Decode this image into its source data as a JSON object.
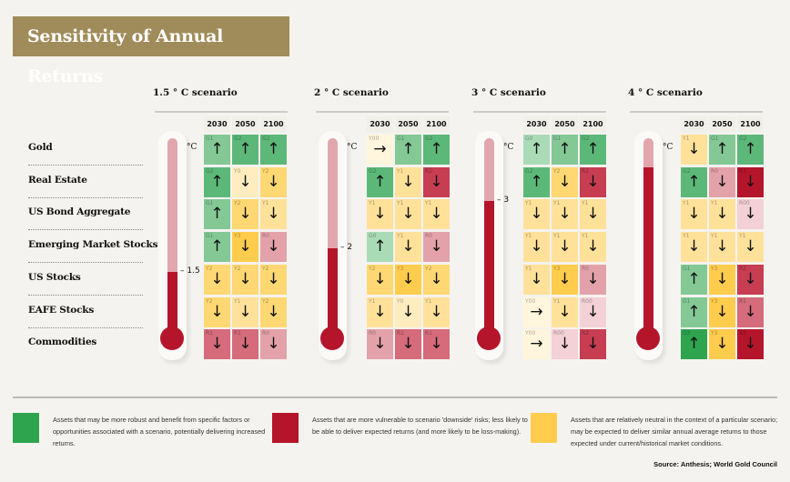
{
  "title": "Sensitivity of Annual Returns",
  "chart_data": {
    "type": "table",
    "title": "Sensitivity of Annual Returns",
    "assets": [
      "Gold",
      "Real Estate",
      "US Bond Aggregate",
      "Emerging Market Stocks",
      "US Stocks",
      "EAFE Stocks",
      "Commodities"
    ],
    "years": [
      "2030",
      "2050",
      "2100"
    ],
    "unit_label": "°C",
    "scenarios": [
      {
        "title": "1.5 ° C scenario",
        "temp_label": "1.5",
        "fill": 0.32,
        "cells": [
          [
            "G1 ↑",
            "G2 ↑",
            "G2 ↑"
          ],
          [
            "G2 ↑",
            "Y0 ↓",
            "Y2 ↓"
          ],
          [
            "G1 ↑",
            "Y2 ↓",
            "Y1 ↓"
          ],
          [
            "G1 ↑",
            "Y3 ↓",
            "R0 ↓"
          ],
          [
            "Y2 ↓",
            "Y2 ↓",
            "Y2 ↓"
          ],
          [
            "Y2 ↓",
            "Y1 ↓",
            "Y2 ↓"
          ],
          [
            "R1 ↓",
            "R1 ↓",
            "R0 ↓"
          ]
        ]
      },
      {
        "title": "2 ° C scenario",
        "temp_label": "2",
        "fill": 0.44,
        "cells": [
          [
            "Y00 →",
            "G1 ↑",
            "G2 ↑"
          ],
          [
            "G2 ↑",
            "Y1 ↓",
            "R2 ↓"
          ],
          [
            "Y1 ↓",
            "Y1 ↓",
            "Y1 ↓"
          ],
          [
            "G0 ↑",
            "Y1 ↓",
            "R0 ↓"
          ],
          [
            "Y2 ↓",
            "Y3 ↓",
            "Y2 ↓"
          ],
          [
            "Y1 ↓",
            "Y0 ↓",
            "Y1 ↓"
          ],
          [
            "R0 ↓",
            "R1 ↓",
            "R1 ↓"
          ]
        ]
      },
      {
        "title": "3 ° C scenario",
        "temp_label": "3",
        "fill": 0.68,
        "cells": [
          [
            "G0 ↑",
            "G1 ↑",
            "G2 ↑"
          ],
          [
            "G2 ↑",
            "Y2 ↓",
            "R2 ↓"
          ],
          [
            "Y1 ↓",
            "Y1 ↓",
            "Y1 ↓"
          ],
          [
            "Y1 ↓",
            "Y1 ↓",
            "Y1 ↓"
          ],
          [
            "Y1 ↓",
            "Y3 ↓",
            "R0 ↓"
          ],
          [
            "Y00 →",
            "Y1 ↓",
            "R00 ↓"
          ],
          [
            "Y00 →",
            "R00 ↓",
            "R2 ↓"
          ]
        ]
      },
      {
        "title": "4 ° C scenario",
        "temp_label": "",
        "fill": 0.85,
        "cells": [
          [
            "Y1 ↓",
            "G1 ↑",
            "G2 ↑"
          ],
          [
            "G2 ↑",
            "R0 ↓",
            "R3 ↓"
          ],
          [
            "Y1 ↓",
            "Y1 ↓",
            "R00 ↓"
          ],
          [
            "Y1 ↓",
            "Y1 ↓",
            "Y1 ↓"
          ],
          [
            "G1 ↑",
            "Y3 ↓",
            "R2 ↓"
          ],
          [
            "G1 ↑",
            "Y3 ↓",
            "R1 ↓"
          ],
          [
            "G3 ↑",
            "Y3 ↓",
            "R3 ↓"
          ]
        ]
      }
    ],
    "palette": {
      "G3": "#2ea44f",
      "G2": "#5cb878",
      "G1": "#83c895",
      "G0": "#aadbb7",
      "Y3": "#ffcc4d",
      "Y2": "#ffd873",
      "Y1": "#ffe19a",
      "Y0": "#ffedc0",
      "Y00": "#fff6dd",
      "R3": "#b5152b",
      "R2": "#c73d52",
      "R1": "#d56b7b",
      "R0": "#e3a2aa",
      "R00": "#f3d1d6"
    }
  },
  "legend": [
    {
      "color": "#2ea44f",
      "text": "Assets that may be more robust and benefit from specific factors or opportunities associated with a scenario, potentially delivering increased returns."
    },
    {
      "color": "#b5152b",
      "text": "Assets that are more vulnerable to scenario 'downside' risks; less likely to be able to deliver expected returns (and more likely to be loss-making)."
    },
    {
      "color": "#ffcc4d",
      "text": "Assets that are relatively neutral in the context of a particular scenario; may be expected to deliver similar annual average returns to those expected under current/historical market conditions."
    }
  ],
  "source": "Source: Anthesis; World Gold Council"
}
